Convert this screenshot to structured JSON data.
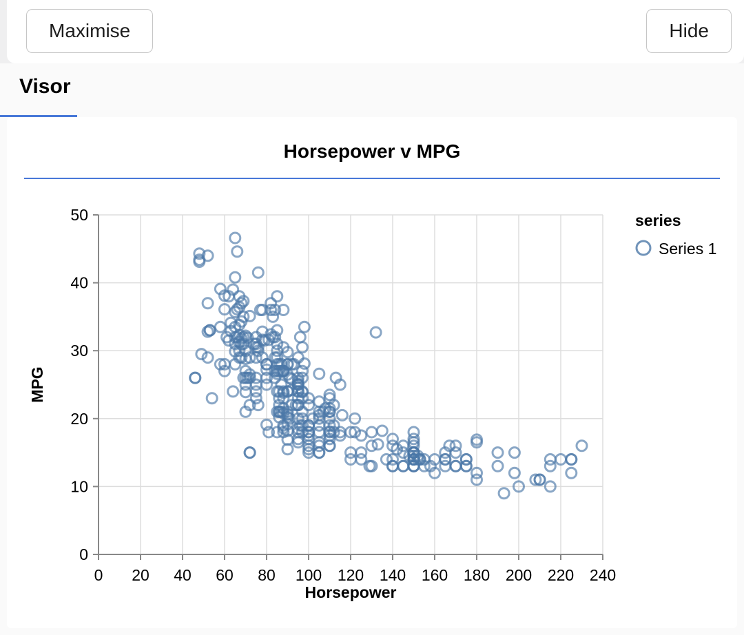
{
  "toolbar": {
    "maximise_label": "Maximise",
    "hide_label": "Hide"
  },
  "tabs": {
    "visor_label": "Visor"
  },
  "colors": {
    "accent_blue": "#4878d8",
    "point_stroke": "#4c78a8",
    "grid": "#dddddd",
    "axis": "#888888",
    "text": "#000000"
  },
  "chart_data": {
    "type": "scatter",
    "title": "Horsepower v MPG",
    "xlabel": "Horsepower",
    "ylabel": "MPG",
    "xlim": [
      0,
      240
    ],
    "ylim": [
      0,
      50
    ],
    "xticks": [
      0,
      20,
      40,
      60,
      80,
      100,
      120,
      140,
      160,
      180,
      200,
      220,
      240
    ],
    "yticks": [
      0,
      10,
      20,
      30,
      40,
      50
    ],
    "grid": true,
    "legend": {
      "title": "series",
      "position": "right",
      "entries": [
        {
          "label": "Series 1",
          "marker": "open-circle",
          "color": "#4c78a8"
        }
      ]
    },
    "series": [
      {
        "name": "Series 1",
        "color": "#4c78a8",
        "points": [
          [
            46,
            26
          ],
          [
            46,
            26
          ],
          [
            48,
            43.1
          ],
          [
            48,
            43.4
          ],
          [
            48,
            44.3
          ],
          [
            49,
            29.5
          ],
          [
            52,
            44
          ],
          [
            52,
            37
          ],
          [
            52,
            32.8
          ],
          [
            52,
            29
          ],
          [
            53,
            33
          ],
          [
            53,
            33
          ],
          [
            54,
            23
          ],
          [
            58,
            39.1
          ],
          [
            58,
            33.5
          ],
          [
            58,
            28
          ],
          [
            60,
            38.1
          ],
          [
            60,
            36.1
          ],
          [
            60,
            28
          ],
          [
            60,
            27
          ],
          [
            61,
            32
          ],
          [
            62,
            38
          ],
          [
            62,
            31.5
          ],
          [
            63,
            34.1
          ],
          [
            63,
            32.9
          ],
          [
            64,
            39
          ],
          [
            64,
            24
          ],
          [
            65,
            46.6
          ],
          [
            65,
            40.8
          ],
          [
            65,
            35.7
          ],
          [
            65,
            33.5
          ],
          [
            65,
            32
          ],
          [
            65,
            31
          ],
          [
            65,
            29.9
          ],
          [
            65,
            28
          ],
          [
            66,
            44.6
          ],
          [
            66,
            36.1
          ],
          [
            66,
            32
          ],
          [
            67,
            38
          ],
          [
            67,
            36.4
          ],
          [
            67,
            33.8
          ],
          [
            67,
            32.3
          ],
          [
            67,
            31.3
          ],
          [
            67,
            30
          ],
          [
            67,
            29
          ],
          [
            68,
            37
          ],
          [
            68,
            34.3
          ],
          [
            68,
            31.8
          ],
          [
            68,
            30.9
          ],
          [
            68,
            29
          ],
          [
            69,
            37.3
          ],
          [
            69,
            35
          ],
          [
            69,
            32
          ],
          [
            69,
            31
          ],
          [
            69,
            26
          ],
          [
            70,
            32.2
          ],
          [
            70,
            30
          ],
          [
            70,
            28.8
          ],
          [
            70,
            27
          ],
          [
            70,
            26
          ],
          [
            70,
            25
          ],
          [
            70,
            23.9
          ],
          [
            70,
            21
          ],
          [
            71,
            31.9
          ],
          [
            71,
            26
          ],
          [
            72,
            35.1
          ],
          [
            72,
            29
          ],
          [
            72,
            26.5
          ],
          [
            72,
            26
          ],
          [
            72,
            22
          ],
          [
            72,
            15
          ],
          [
            72,
            15
          ],
          [
            74,
            31
          ],
          [
            75,
            32
          ],
          [
            75,
            31
          ],
          [
            75,
            30.5
          ],
          [
            75,
            29
          ],
          [
            75,
            26
          ],
          [
            75,
            25
          ],
          [
            75,
            24
          ],
          [
            75,
            23
          ],
          [
            76,
            41.5
          ],
          [
            76,
            30.5
          ],
          [
            76,
            30
          ],
          [
            76,
            22
          ],
          [
            77,
            36
          ],
          [
            78,
            36
          ],
          [
            78,
            32.8
          ],
          [
            78,
            31.6
          ],
          [
            78,
            29
          ],
          [
            79,
            31.5
          ],
          [
            80,
            28
          ],
          [
            80,
            28
          ],
          [
            80,
            27.2
          ],
          [
            80,
            26
          ],
          [
            80,
            25
          ],
          [
            80,
            19.1
          ],
          [
            81,
            31.6
          ],
          [
            81,
            18
          ],
          [
            82,
            37
          ],
          [
            82,
            36
          ],
          [
            82,
            32.4
          ],
          [
            83,
            35
          ],
          [
            83,
            32
          ],
          [
            84,
            36
          ],
          [
            84,
            32
          ],
          [
            84,
            29
          ],
          [
            84,
            27
          ],
          [
            84,
            26
          ],
          [
            85,
            38
          ],
          [
            85,
            33
          ],
          [
            85,
            31
          ],
          [
            85,
            30
          ],
          [
            85,
            29
          ],
          [
            85,
            28
          ],
          [
            85,
            27
          ],
          [
            85,
            26.6
          ],
          [
            85,
            24
          ],
          [
            85,
            21
          ],
          [
            85,
            18
          ],
          [
            86,
            28
          ],
          [
            86,
            27
          ],
          [
            86,
            24
          ],
          [
            86,
            23
          ],
          [
            86,
            22
          ],
          [
            86,
            21
          ],
          [
            86,
            21
          ],
          [
            86,
            20.2
          ],
          [
            87,
            28
          ],
          [
            87,
            27
          ],
          [
            87,
            25
          ],
          [
            87,
            21
          ],
          [
            88,
            36
          ],
          [
            88,
            30.5
          ],
          [
            88,
            27
          ],
          [
            88,
            27
          ],
          [
            88,
            27
          ],
          [
            88,
            24
          ],
          [
            88,
            23.8
          ],
          [
            88,
            23
          ],
          [
            88,
            21.5
          ],
          [
            88,
            20.8
          ],
          [
            88,
            19
          ],
          [
            88,
            18.6
          ],
          [
            88,
            18
          ],
          [
            90,
            29.8
          ],
          [
            90,
            28
          ],
          [
            90,
            28
          ],
          [
            90,
            26.5
          ],
          [
            90,
            24
          ],
          [
            90,
            24
          ],
          [
            90,
            21
          ],
          [
            90,
            20.6
          ],
          [
            90,
            20.2
          ],
          [
            90,
            19.2
          ],
          [
            90,
            18.2
          ],
          [
            90,
            16.9
          ],
          [
            90,
            15.5
          ],
          [
            91,
            26
          ],
          [
            91,
            20
          ],
          [
            92,
            28
          ],
          [
            92,
            25.8
          ],
          [
            92,
            24.2
          ],
          [
            92,
            22
          ],
          [
            93,
            28
          ],
          [
            94,
            22
          ],
          [
            95,
            29
          ],
          [
            95,
            26
          ],
          [
            95,
            25.5
          ],
          [
            95,
            25.1
          ],
          [
            95,
            25
          ],
          [
            95,
            25
          ],
          [
            95,
            24.5
          ],
          [
            95,
            24
          ],
          [
            95,
            24
          ],
          [
            95,
            23
          ],
          [
            95,
            22
          ],
          [
            95,
            22
          ],
          [
            95,
            20
          ],
          [
            95,
            18.5
          ],
          [
            95,
            18
          ],
          [
            95,
            17
          ],
          [
            95,
            16.5
          ],
          [
            96,
            32
          ],
          [
            96,
            19
          ],
          [
            97,
            30.5
          ],
          [
            97,
            27
          ],
          [
            97,
            26
          ],
          [
            97,
            24
          ],
          [
            97,
            23.9
          ],
          [
            97,
            23
          ],
          [
            97,
            21
          ],
          [
            97,
            20
          ],
          [
            97,
            19
          ],
          [
            97,
            18
          ],
          [
            98,
            33.5
          ],
          [
            98,
            28.1
          ],
          [
            100,
            23
          ],
          [
            100,
            22
          ],
          [
            100,
            19
          ],
          [
            100,
            19
          ],
          [
            100,
            18
          ],
          [
            100,
            18
          ],
          [
            100,
            17.5
          ],
          [
            100,
            17
          ],
          [
            100,
            16
          ],
          [
            100,
            15.5
          ],
          [
            100,
            15
          ],
          [
            102,
            20
          ],
          [
            105,
            26.6
          ],
          [
            105,
            22.5
          ],
          [
            105,
            21
          ],
          [
            105,
            20.5
          ],
          [
            105,
            20
          ],
          [
            105,
            19
          ],
          [
            105,
            18
          ],
          [
            105,
            16.5
          ],
          [
            105,
            16
          ],
          [
            105,
            15
          ],
          [
            105,
            15
          ],
          [
            107,
            21
          ],
          [
            108,
            21.5
          ],
          [
            110,
            23.5
          ],
          [
            110,
            23
          ],
          [
            110,
            21.5
          ],
          [
            110,
            21
          ],
          [
            110,
            21
          ],
          [
            110,
            20
          ],
          [
            110,
            19
          ],
          [
            110,
            18.1
          ],
          [
            110,
            18
          ],
          [
            110,
            17.5
          ],
          [
            110,
            17
          ],
          [
            110,
            16
          ],
          [
            110,
            16
          ],
          [
            112,
            22
          ],
          [
            112,
            19
          ],
          [
            112,
            18
          ],
          [
            113,
            26
          ],
          [
            115,
            25
          ],
          [
            115,
            18
          ],
          [
            115,
            17.5
          ],
          [
            116,
            20.5
          ],
          [
            120,
            18
          ],
          [
            120,
            15
          ],
          [
            120,
            14
          ],
          [
            122,
            20
          ],
          [
            122,
            18
          ],
          [
            125,
            17.5
          ],
          [
            125,
            15
          ],
          [
            125,
            14
          ],
          [
            129,
            13
          ],
          [
            130,
            18
          ],
          [
            130,
            16
          ],
          [
            130,
            13
          ],
          [
            132,
            32.7
          ],
          [
            133,
            16.2
          ],
          [
            135,
            18.2
          ],
          [
            137,
            14
          ],
          [
            140,
            17
          ],
          [
            140,
            16
          ],
          [
            140,
            14
          ],
          [
            140,
            13
          ],
          [
            140,
            13
          ],
          [
            142,
            15.5
          ],
          [
            145,
            16
          ],
          [
            145,
            15
          ],
          [
            145,
            13
          ],
          [
            145,
            13
          ],
          [
            148,
            14.5
          ],
          [
            150,
            18
          ],
          [
            150,
            17
          ],
          [
            150,
            16.5
          ],
          [
            150,
            16
          ],
          [
            150,
            15
          ],
          [
            150,
            15
          ],
          [
            150,
            15
          ],
          [
            150,
            15
          ],
          [
            150,
            15
          ],
          [
            150,
            14.5
          ],
          [
            150,
            14
          ],
          [
            150,
            14
          ],
          [
            150,
            14
          ],
          [
            150,
            14
          ],
          [
            150,
            14
          ],
          [
            150,
            13
          ],
          [
            150,
            13
          ],
          [
            150,
            13
          ],
          [
            152,
            14.5
          ],
          [
            152,
            14
          ],
          [
            153,
            14
          ],
          [
            153,
            14
          ],
          [
            155,
            14
          ],
          [
            155,
            13
          ],
          [
            158,
            13
          ],
          [
            160,
            14
          ],
          [
            160,
            12
          ],
          [
            165,
            15
          ],
          [
            165,
            14
          ],
          [
            165,
            14
          ],
          [
            165,
            13
          ],
          [
            167,
            16
          ],
          [
            170,
            16
          ],
          [
            170,
            15
          ],
          [
            170,
            13
          ],
          [
            170,
            13
          ],
          [
            175,
            14
          ],
          [
            175,
            14
          ],
          [
            175,
            13
          ],
          [
            175,
            13
          ],
          [
            180,
            16.9
          ],
          [
            180,
            16.5
          ],
          [
            180,
            12
          ],
          [
            180,
            11
          ],
          [
            190,
            15
          ],
          [
            190,
            13
          ],
          [
            193,
            9
          ],
          [
            198,
            15
          ],
          [
            198,
            12
          ],
          [
            200,
            10
          ],
          [
            208,
            11
          ],
          [
            210,
            11
          ],
          [
            210,
            11
          ],
          [
            215,
            14
          ],
          [
            215,
            13
          ],
          [
            215,
            10
          ],
          [
            220,
            14
          ],
          [
            225,
            14
          ],
          [
            225,
            14
          ],
          [
            225,
            12
          ],
          [
            230,
            16
          ]
        ]
      }
    ]
  }
}
